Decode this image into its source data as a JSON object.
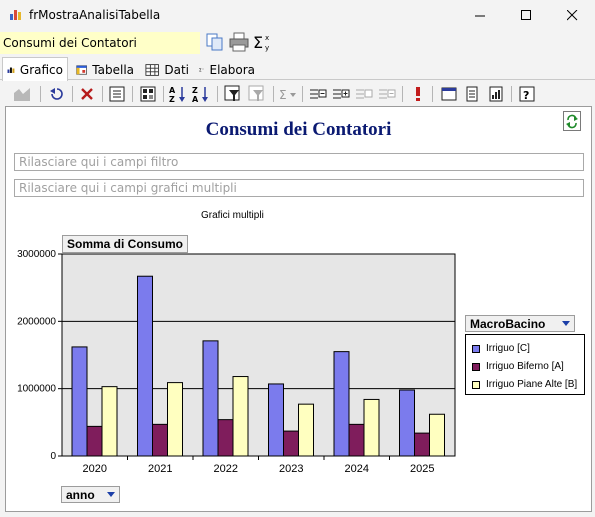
{
  "window": {
    "title": "frMostraAnalisiTabella",
    "icon": "bar-chart-icon"
  },
  "name_field": {
    "value": "Consumi dei Contatori"
  },
  "tabs": [
    {
      "label": "Grafico",
      "icon": "chart-icon",
      "active": true
    },
    {
      "label": "Tabella",
      "icon": "table-icon",
      "active": false
    },
    {
      "label": "Dati",
      "icon": "grid-icon",
      "active": false
    },
    {
      "label": "Elabora",
      "icon": "sigma-icon",
      "active": false
    }
  ],
  "toolbar": {
    "icons": [
      "chart-type-icon",
      "undo-icon",
      "delete-icon",
      "list-icon",
      "calculator-icon",
      "sort-az-icon",
      "sort-za-icon",
      "filter-icon",
      "filter-clear-icon",
      "sum-icon",
      "expand-icon",
      "add-field-icon",
      "collapse-icon",
      "remove-field-icon",
      "warning-icon",
      "window-icon",
      "notes-icon",
      "report-icon",
      "help-icon"
    ]
  },
  "chart_panel": {
    "filter_zone_placeholder": "Rilasciare qui i campi filtro",
    "multi_zone_placeholder": "Rilasciare qui i campi grafici multipli",
    "multi_label": "Grafici multipli",
    "measure_label": "Somma di Consumo",
    "axis_field": "anno",
    "legend_field": "MacroBacino"
  },
  "chart_data": {
    "type": "bar",
    "title": "Consumi dei Contatori",
    "categories": [
      "2020",
      "2021",
      "2022",
      "2023",
      "2024",
      "2025"
    ],
    "series": [
      {
        "name": "Irriguo [C]",
        "color": "#7b7bed",
        "values": [
          1620000,
          2670000,
          1710000,
          1070000,
          1550000,
          980000
        ]
      },
      {
        "name": "Irriguo Biferno [A]",
        "color": "#7f1d5c",
        "values": [
          440000,
          470000,
          540000,
          370000,
          470000,
          340000
        ]
      },
      {
        "name": "Irriguo Piane Alte [B]",
        "color": "#ffffc0",
        "values": [
          1030000,
          1090000,
          1180000,
          770000,
          840000,
          620000
        ]
      }
    ],
    "ylim": [
      0,
      3000000
    ],
    "yticks": [
      "0",
      "1000000",
      "2000000",
      "3000000"
    ],
    "yticks_values": [
      0,
      1000000,
      2000000,
      3000000
    ],
    "grid": true,
    "legend": "right"
  }
}
